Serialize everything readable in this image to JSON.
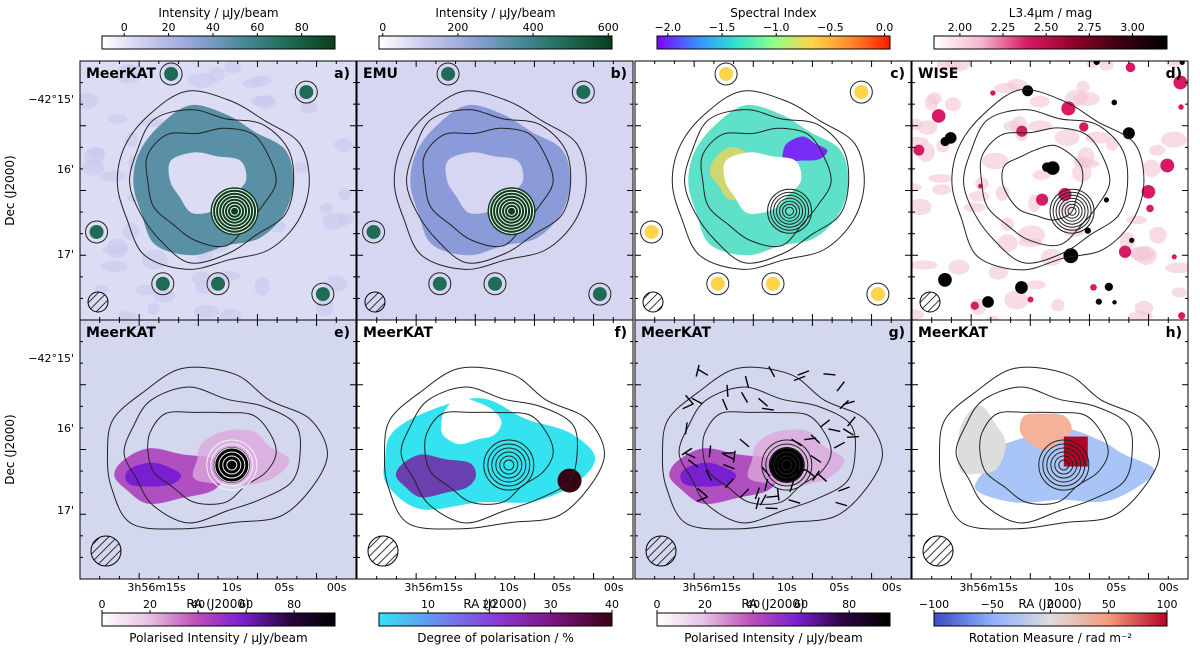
{
  "chart_data": {
    "type": "heatmap",
    "layout": {
      "rows": 2,
      "cols": 4
    },
    "axes": {
      "ylabel": "Dec (J2000)",
      "xlabel": "RA (J2000)",
      "yticks": [
        "−42°15'",
        "16'",
        "17'"
      ],
      "xticks_first": "3h56m15s",
      "xticks": [
        "3h56m15s",
        "10s",
        "05s",
        "00s"
      ]
    },
    "panels": [
      {
        "id": "a",
        "label": "a)",
        "survey": "MeerKAT",
        "colorbar": {
          "label": "Intensity / µJy/beam",
          "ticks": [
            "0",
            "20",
            "40",
            "60",
            "80"
          ],
          "range": [
            -10,
            95
          ],
          "colors": [
            "#ffffff",
            "#c9c9ee",
            "#8fa3d8",
            "#4b8a9a",
            "#1f6b55",
            "#0b3d1c"
          ]
        }
      },
      {
        "id": "b",
        "label": "b)",
        "survey": "EMU",
        "colorbar": {
          "label": "Intensity / µJy/beam",
          "ticks": [
            "0",
            "200",
            "400",
            "600"
          ],
          "range": [
            -10,
            610
          ],
          "colors": [
            "#ffffff",
            "#c9c9ee",
            "#8fa3d8",
            "#4b8a9a",
            "#1f6b55",
            "#0b3d1c"
          ]
        }
      },
      {
        "id": "c",
        "label": "c)",
        "survey": "",
        "colorbar": {
          "label": "Spectral Index",
          "ticks": [
            "−2.0",
            "−1.5",
            "−1.0",
            "−0.5",
            "0.0"
          ],
          "range": [
            -2.1,
            0.05
          ],
          "colors": [
            "#7f00ff",
            "#3b8bff",
            "#2fe0d0",
            "#8cff8c",
            "#ffd34a",
            "#ff8a30",
            "#ff1a00"
          ]
        }
      },
      {
        "id": "d",
        "label": "d)",
        "survey": "WISE",
        "colorbar": {
          "label": "L3.4µm / mag",
          "ticks": [
            "2.00",
            "2.25",
            "2.50",
            "2.75",
            "3.00"
          ],
          "range": [
            1.85,
            3.2
          ],
          "colors": [
            "#ffffff",
            "#f4b9cf",
            "#d61a63",
            "#8e0428",
            "#3a0010",
            "#000000"
          ]
        }
      },
      {
        "id": "e",
        "label": "e)",
        "survey": "MeerKAT",
        "colorbar": {
          "label": "Polarised Intensity / µJy/beam",
          "ticks": [
            "0",
            "20",
            "40",
            "60",
            "80"
          ],
          "range": [
            0,
            97
          ],
          "colors": [
            "#ffffff",
            "#e7c2e5",
            "#c050b8",
            "#7a1fcf",
            "#2a0540",
            "#000000"
          ]
        }
      },
      {
        "id": "f",
        "label": "f)",
        "survey": "MeerKAT",
        "colorbar": {
          "label": "Degree of polarisation / %",
          "ticks": [
            "10",
            "20",
            "30",
            "40"
          ],
          "range": [
            2,
            40
          ],
          "colors": [
            "#35e3f0",
            "#6a8cf0",
            "#8b3bd8",
            "#7a1580",
            "#3a0014"
          ]
        }
      },
      {
        "id": "g",
        "label": "g)",
        "survey": "MeerKAT",
        "colorbar": {
          "label": "Polarised Intensity / µJy/beam",
          "ticks": [
            "0",
            "20",
            "40",
            "60",
            "80"
          ],
          "range": [
            0,
            97
          ],
          "colors": [
            "#ffffff",
            "#e7c2e5",
            "#c050b8",
            "#7a1fcf",
            "#2a0540",
            "#000000"
          ]
        }
      },
      {
        "id": "h",
        "label": "h)",
        "survey": "MeerKAT",
        "colorbar": {
          "label": "Rotation Measure / rad m⁻²",
          "ticks": [
            "−100",
            "−50",
            "0",
            "50",
            "100"
          ],
          "range": [
            -100,
            100
          ],
          "colors": [
            "#3b4cc0",
            "#8db0fe",
            "#dddddd",
            "#f49a7b",
            "#b40426"
          ]
        }
      }
    ]
  }
}
